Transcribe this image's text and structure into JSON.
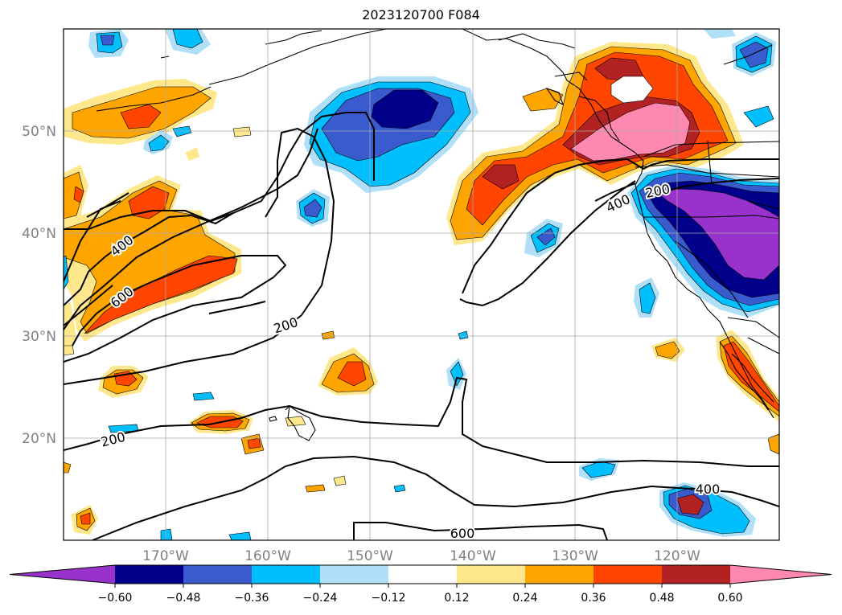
{
  "title": "2023120700 F084",
  "map": {
    "lat_labels": [
      "50°N",
      "40°N",
      "30°N",
      "20°N"
    ],
    "lon_labels": [
      "170°W",
      "160°W",
      "150°W",
      "140°W",
      "130°W",
      "120°W"
    ],
    "contour_labels": [
      "400",
      "600",
      "200",
      "200",
      "400",
      "200",
      "400",
      "600"
    ]
  },
  "colorbar": {
    "ticks": [
      "−0.60",
      "−0.48",
      "−0.36",
      "−0.24",
      "−0.12",
      "0.12",
      "0.24",
      "0.36",
      "0.48",
      "0.60"
    ],
    "colors": [
      "#9932cc",
      "#00008b",
      "#3a5bcd",
      "#00bfff",
      "#b0e0f8",
      "#ffffff",
      "#ffe88c",
      "#ffa500",
      "#ff4500",
      "#b22222",
      "#ff88b0"
    ]
  }
}
